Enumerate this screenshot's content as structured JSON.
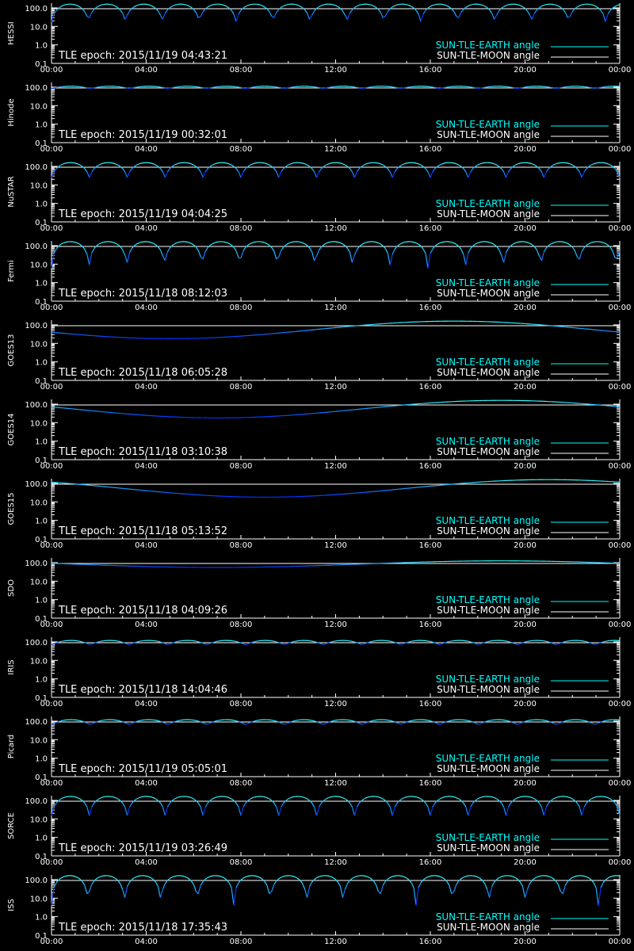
{
  "colors": {
    "background": "#000000",
    "axes": "#ffffff",
    "earth_line": "#00ffff",
    "moon_line": "#ffffff",
    "curve_low": "#0033ff",
    "curve_high": "#33ffff"
  },
  "chart_data": [
    {
      "type": "line",
      "satellite": "HESSI",
      "tle_epoch_label": "TLE epoch: 2015/11/19 04:43:21",
      "orbit_period_h": 1.56,
      "min_angle": 18,
      "max_angle": 160,
      "moon_phase_h": 0,
      "legend": [
        "SUN-TLE-EARTH angle",
        "SUN-TLE-MOON angle"
      ],
      "x_ticks": [
        "00:00",
        "04:00",
        "08:00",
        "12:00",
        "16:00",
        "20:00",
        "00:00"
      ],
      "y_ticks": [
        "100.0",
        "10.0",
        "1.0",
        "0.1"
      ],
      "y_scale": "log",
      "ylim": [
        0.1,
        180
      ],
      "reference_line": 90
    },
    {
      "type": "line",
      "satellite": "Hinode",
      "tle_epoch_label": "TLE epoch: 2015/11/19 00:32:01",
      "orbit_period_h": 1.64,
      "min_angle": 85,
      "max_angle": 112,
      "moon_phase_h": 0,
      "legend": [
        "SUN-TLE-EARTH angle",
        "SUN-TLE-MOON angle"
      ],
      "x_ticks": [
        "00:00",
        "04:00",
        "08:00",
        "12:00",
        "16:00",
        "20:00",
        "00:00"
      ],
      "y_ticks": [
        "100.0",
        "10.0",
        "1.0",
        "0.1"
      ],
      "y_scale": "log",
      "ylim": [
        0.1,
        180
      ],
      "reference_line": 90
    },
    {
      "type": "line",
      "satellite": "NuSTAR",
      "tle_epoch_label": "TLE epoch: 2015/11/19 04:04:25",
      "orbit_period_h": 1.6,
      "min_angle": 25,
      "max_angle": 160,
      "moon_phase_h": 0,
      "legend": [
        "SUN-TLE-EARTH angle",
        "SUN-TLE-MOON angle"
      ],
      "x_ticks": [
        "00:00",
        "04:00",
        "08:00",
        "12:00",
        "16:00",
        "20:00",
        "00:00"
      ],
      "y_ticks": [
        "100.0",
        "10.0",
        "1.0",
        "0.1"
      ],
      "y_scale": "log",
      "ylim": [
        0.1,
        180
      ],
      "reference_line": 90
    },
    {
      "type": "line",
      "satellite": "Fermi",
      "tle_epoch_label": "TLE epoch: 2015/11/18 08:12:03",
      "orbit_period_h": 1.59,
      "min_angle": 6,
      "max_angle": 165,
      "moon_phase_h": 0,
      "legend": [
        "SUN-TLE-EARTH angle",
        "SUN-TLE-MOON angle"
      ],
      "x_ticks": [
        "00:00",
        "04:00",
        "08:00",
        "12:00",
        "16:00",
        "20:00",
        "00:00"
      ],
      "y_ticks": [
        "100.0",
        "10.0",
        "1.0",
        "0.1"
      ],
      "y_scale": "log",
      "ylim": [
        0.1,
        180
      ],
      "reference_line": 90
    },
    {
      "type": "line",
      "satellite": "GOES13",
      "tle_epoch_label": "TLE epoch: 2015/11/18 06:05:28",
      "orbit_period_h": 24,
      "min_angle": 18,
      "max_angle": 160,
      "moon_phase_h": 5,
      "legend": [
        "SUN-TLE-EARTH angle",
        "SUN-TLE-MOON angle"
      ],
      "x_ticks": [
        "00:00",
        "04:00",
        "08:00",
        "12:00",
        "16:00",
        "20:00",
        "00:00"
      ],
      "y_ticks": [
        "100.0",
        "10.0",
        "1.0",
        "0.1"
      ],
      "y_scale": "log",
      "ylim": [
        0.1,
        180
      ],
      "reference_line": 90
    },
    {
      "type": "line",
      "satellite": "GOES14",
      "tle_epoch_label": "TLE epoch: 2015/11/18 03:10:38",
      "orbit_period_h": 24,
      "min_angle": 18,
      "max_angle": 160,
      "moon_phase_h": 7,
      "legend": [
        "SUN-TLE-EARTH angle",
        "SUN-TLE-MOON angle"
      ],
      "x_ticks": [
        "00:00",
        "04:00",
        "08:00",
        "12:00",
        "16:00",
        "20:00",
        "00:00"
      ],
      "y_ticks": [
        "100.0",
        "10.0",
        "1.0",
        "0.1"
      ],
      "y_scale": "log",
      "ylim": [
        0.1,
        180
      ],
      "reference_line": 90
    },
    {
      "type": "line",
      "satellite": "GOES15",
      "tle_epoch_label": "TLE epoch: 2015/11/18 05:13:52",
      "orbit_period_h": 24,
      "min_angle": 18,
      "max_angle": 160,
      "moon_phase_h": 9,
      "legend": [
        "SUN-TLE-EARTH angle",
        "SUN-TLE-MOON angle"
      ],
      "x_ticks": [
        "00:00",
        "04:00",
        "08:00",
        "12:00",
        "16:00",
        "20:00",
        "00:00"
      ],
      "y_ticks": [
        "100.0",
        "10.0",
        "1.0",
        "0.1"
      ],
      "y_scale": "log",
      "ylim": [
        0.1,
        180
      ],
      "reference_line": 90
    },
    {
      "type": "line",
      "satellite": "SDO",
      "tle_epoch_label": "TLE epoch: 2015/11/18 04:09:26",
      "orbit_period_h": 24,
      "min_angle": 55,
      "max_angle": 125,
      "moon_phase_h": 7,
      "legend": [
        "SUN-TLE-EARTH angle",
        "SUN-TLE-MOON angle"
      ],
      "x_ticks": [
        "00:00",
        "04:00",
        "08:00",
        "12:00",
        "16:00",
        "20:00",
        "00:00"
      ],
      "y_ticks": [
        "100.0",
        "10.0",
        "1.0",
        "0.1"
      ],
      "y_scale": "log",
      "ylim": [
        0.1,
        180
      ],
      "reference_line": 90
    },
    {
      "type": "line",
      "satellite": "IRIS",
      "tle_epoch_label": "TLE epoch: 2015/11/18 14:04:46",
      "orbit_period_h": 1.64,
      "min_angle": 70,
      "max_angle": 120,
      "moon_phase_h": 0,
      "legend": [
        "SUN-TLE-EARTH angle",
        "SUN-TLE-MOON angle"
      ],
      "x_ticks": [
        "00:00",
        "04:00",
        "08:00",
        "12:00",
        "16:00",
        "20:00",
        "00:00"
      ],
      "y_ticks": [
        "100.0",
        "10.0",
        "1.0",
        "0.1"
      ],
      "y_scale": "log",
      "ylim": [
        0.1,
        180
      ],
      "reference_line": 90
    },
    {
      "type": "line",
      "satellite": "Picard",
      "tle_epoch_label": "TLE epoch: 2015/11/19 05:05:01",
      "orbit_period_h": 1.64,
      "min_angle": 65,
      "max_angle": 120,
      "moon_phase_h": 0,
      "legend": [
        "SUN-TLE-EARTH angle",
        "SUN-TLE-MOON angle"
      ],
      "x_ticks": [
        "00:00",
        "04:00",
        "08:00",
        "12:00",
        "16:00",
        "20:00",
        "00:00"
      ],
      "y_ticks": [
        "100.0",
        "10.0",
        "1.0",
        "0.1"
      ],
      "y_scale": "log",
      "ylim": [
        0.1,
        180
      ],
      "reference_line": 90
    },
    {
      "type": "line",
      "satellite": "SORCE",
      "tle_epoch_label": "TLE epoch: 2015/11/19 03:26:49",
      "orbit_period_h": 1.6,
      "min_angle": 15,
      "max_angle": 165,
      "moon_phase_h": 0,
      "legend": [
        "SUN-TLE-EARTH angle",
        "SUN-TLE-MOON angle"
      ],
      "x_ticks": [
        "00:00",
        "04:00",
        "08:00",
        "12:00",
        "16:00",
        "20:00",
        "00:00"
      ],
      "y_ticks": [
        "100.0",
        "10.0",
        "1.0",
        "0.1"
      ],
      "y_scale": "log",
      "ylim": [
        0.1,
        180
      ],
      "reference_line": 90
    },
    {
      "type": "line",
      "satellite": "ISS",
      "tle_epoch_label": "TLE epoch: 2015/11/18 17:35:43",
      "orbit_period_h": 1.54,
      "min_angle": 4,
      "max_angle": 165,
      "moon_phase_h": 0,
      "legend": [
        "SUN-TLE-EARTH angle",
        "SUN-TLE-MOON angle"
      ],
      "x_ticks": [
        "00:00",
        "04:00",
        "08:00",
        "12:00",
        "16:00",
        "20:00",
        "00:00"
      ],
      "y_ticks": [
        "100.0",
        "10.0",
        "1.0",
        "0.1"
      ],
      "y_scale": "log",
      "ylim": [
        0.1,
        180
      ],
      "reference_line": 90
    }
  ]
}
